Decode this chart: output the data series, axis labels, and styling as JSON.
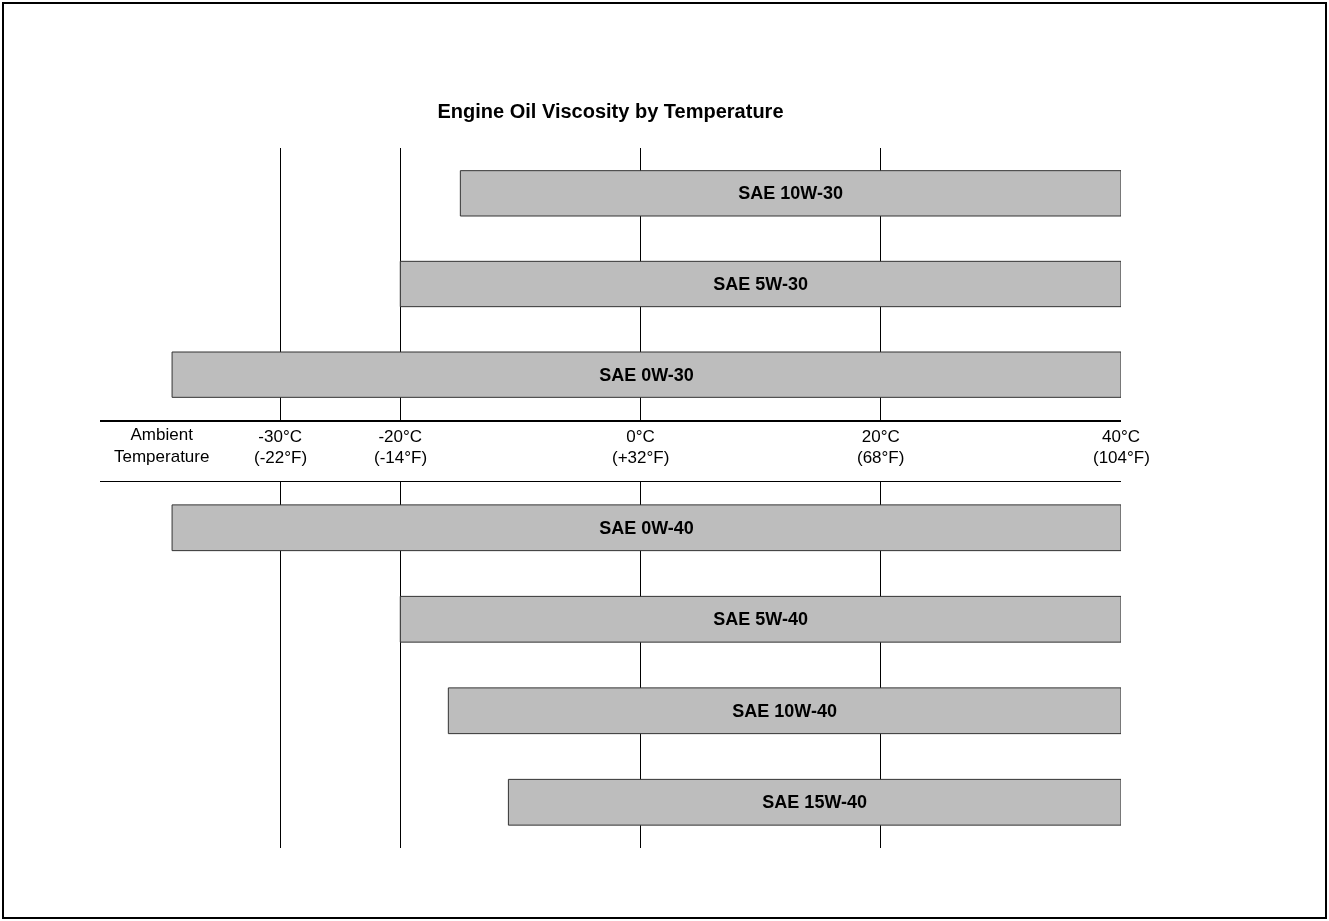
{
  "chart_data": [
    {
      "type": "bar",
      "title": "Engine Oil Viscosity by Temperature",
      "xlabel": "Ambient\nTemperature",
      "orientation": "horizontal",
      "categories": [
        "SAE 10W-30",
        "SAE 5W-30",
        "SAE 0W-30"
      ],
      "base": [
        -15,
        -20,
        -39
      ],
      "values": [
        55,
        60,
        79
      ],
      "color": "#bdbdbd",
      "xlim": [
        -45,
        40
      ],
      "xticks": [
        {
          "value": -30,
          "label": "-30°C"
        },
        {
          "value": -20,
          "label": "-20°C"
        },
        {
          "value": 0,
          "label": "0°C"
        },
        {
          "value": 20,
          "label": "20°C"
        },
        {
          "value": 40,
          "label": "40°C"
        }
      ],
      "annotations": [
        "(-22°F)",
        "(-14°F)",
        "(+32°F)",
        "(68°F)",
        "(104°F)"
      ],
      "grid": "x",
      "tick_labels": "x"
    },
    {
      "type": "bar",
      "orientation": "horizontal",
      "categories": [
        "SAE 0W-40",
        "SAE 5W-40",
        "SAE 10W-40",
        "SAE 15W-40"
      ],
      "base": [
        -39,
        -20,
        -16,
        -11
      ],
      "values": [
        79,
        60,
        56,
        51
      ],
      "color": "#bdbdbd",
      "xlim": [
        -45,
        40
      ],
      "xticks": [
        -30,
        -20,
        0,
        20,
        40
      ],
      "grid": "x",
      "tick_labels": false
    }
  ]
}
